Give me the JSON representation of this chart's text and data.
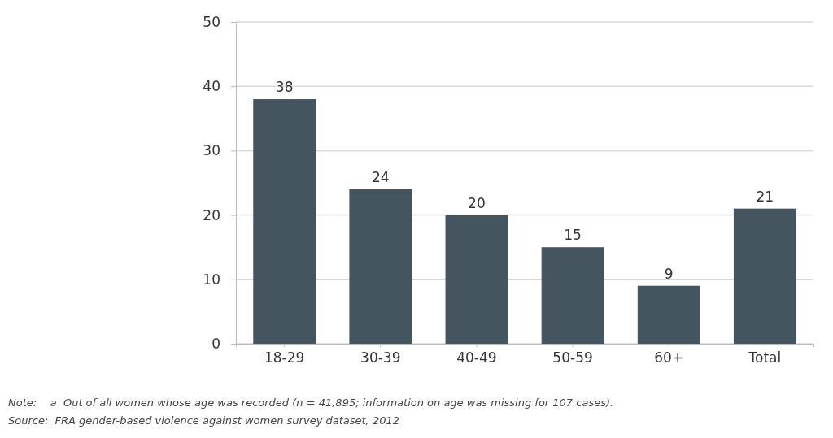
{
  "chart_data": {
    "type": "bar",
    "categories": [
      "18-29",
      "30-39",
      "40-49",
      "50-59",
      "60+",
      "Total"
    ],
    "values": [
      38,
      24,
      20,
      15,
      9,
      21
    ],
    "color": "#455560",
    "ylim": [
      0,
      50
    ],
    "yticks": [
      0,
      10,
      20,
      30,
      40,
      50
    ],
    "grid": "y",
    "data_labels": true,
    "annotations": [
      "Note:    a  Out of all women whose age was recorded (n = 41,895; information on age was missing for 107 cases).",
      "Source:  FRA gender-based violence against women survey dataset, 2012"
    ]
  }
}
